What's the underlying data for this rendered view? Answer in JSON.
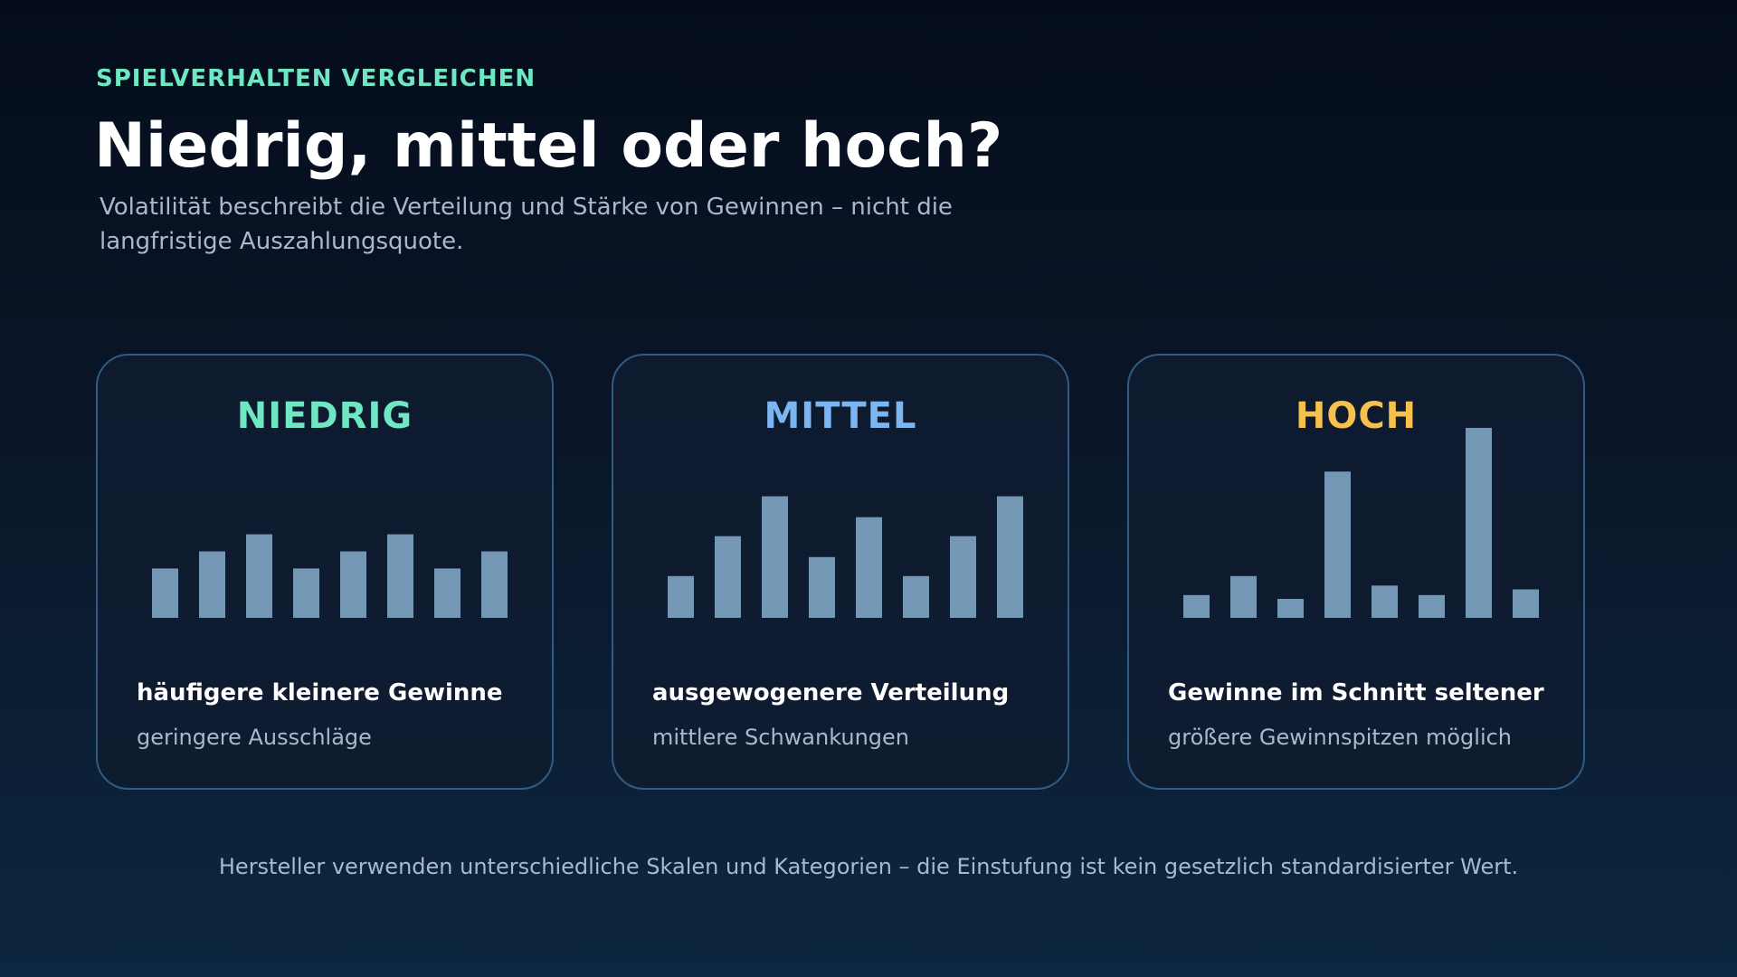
{
  "header": {
    "eyebrow": "SPIELVERHALTEN VERGLEICHEN",
    "title": "Niedrig, mittel oder hoch?",
    "subtitle": "Volatilität beschreibt die Verteilung und Stärke von Gewinnen – nicht die langfristige Auszahlungsquote."
  },
  "cards": [
    {
      "title": "NIEDRIG",
      "accent": "#6ee7c2",
      "strong": "häufigere kleinere Gewinne",
      "light": "geringere Ausschläge",
      "bars": [
        0.26,
        0.35,
        0.44,
        0.26,
        0.35,
        0.44,
        0.26,
        0.35
      ]
    },
    {
      "title": "MITTEL",
      "accent": "#7cb6f2",
      "strong": "ausgewogenere Verteilung",
      "light": "mittlere Schwankungen",
      "bars": [
        0.22,
        0.43,
        0.64,
        0.32,
        0.53,
        0.22,
        0.43,
        0.64
      ]
    },
    {
      "title": "HOCH",
      "accent": "#f5c04d",
      "strong": "Gewinne im Schnitt seltener",
      "light": "größere Gewinnspitzen möglich",
      "bars": [
        0.12,
        0.22,
        0.1,
        0.77,
        0.17,
        0.12,
        1.0,
        0.15
      ]
    }
  ],
  "footer": "Hersteller verwenden unterschiedliche Skalen und Kategorien – die Einstufung ist kein gesetzlich standardisierter Wert."
}
